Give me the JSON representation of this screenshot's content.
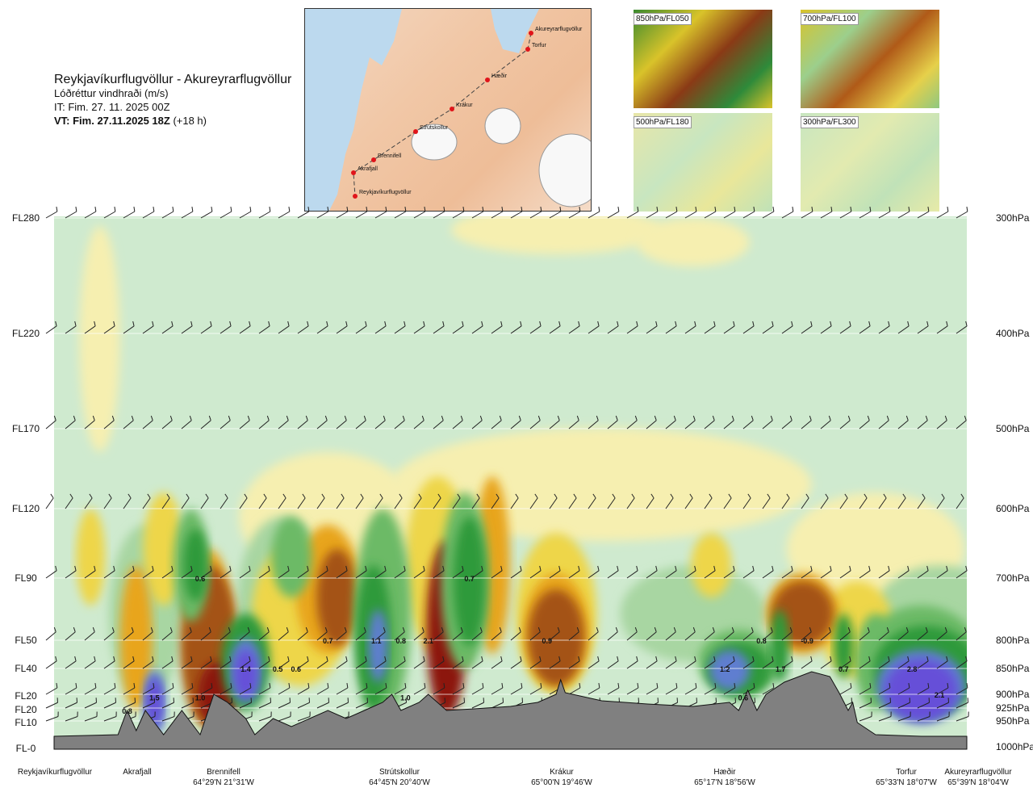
{
  "header": {
    "route": "Reykjavíkurflugvöllur - Akureyrarflugvöllur",
    "variable": "Lóðréttur vindhraði (m/s)",
    "init_time": "IT: Fim. 27. 11. 2025 00Z",
    "valid_bold": "VT: Fim. 27.11.2025 18Z",
    "valid_offset": "(+18 h)"
  },
  "map": {
    "stations": [
      {
        "name": "Akureyrarflugvöllur"
      },
      {
        "name": "Torfur"
      },
      {
        "name": "Hæðir"
      },
      {
        "name": "Krákur"
      },
      {
        "name": "Strútskollur"
      },
      {
        "name": "Brennifell"
      },
      {
        "name": "Akrafjall"
      },
      {
        "name": "Reykjavíkurflugvöllur"
      }
    ]
  },
  "thumbnails": [
    "850hPa/FL050",
    "700hPa/FL100",
    "500hPa/FL180",
    "300hPa/FL300"
  ],
  "colors": {
    "background": "#cfeacf",
    "neg1": "#f6efb0",
    "neg2": "#eed64a",
    "neg3": "#e8a51e",
    "neg4": "#a45216",
    "neg5": "#8c1410",
    "pos1": "#a8d6a2",
    "pos2": "#6cba66",
    "pos3": "#2e9a3a",
    "pos4": "#5e7ed0",
    "pos5": "#6650d8",
    "terrain": "#808080"
  },
  "chart_data": {
    "type": "heatmap",
    "title": "Lóðréttur vindhraði (m/s)",
    "xlabel": "",
    "ylabel": "",
    "left_axis_labels": [
      "FL280",
      "FL220",
      "FL170",
      "FL120",
      "FL90",
      "FL50",
      "FL40",
      "FL20",
      "FL20",
      "FL10",
      "FL-0"
    ],
    "right_axis_labels": [
      "300hPa",
      "400hPa",
      "500hPa",
      "600hPa",
      "700hPa",
      "800hPa",
      "850hPa",
      "900hPa",
      "925hPa",
      "950hPa",
      "1000hPa"
    ],
    "pressure_levels_hpa": [
      300,
      400,
      500,
      600,
      700,
      800,
      850,
      900,
      925,
      950,
      1000
    ],
    "stations": [
      {
        "name": "Reykjavíkurflugvöllur",
        "coord": ""
      },
      {
        "name": "Akrafjall",
        "coord": ""
      },
      {
        "name": "Brennifell",
        "coord": "64°29'N 21°31'W"
      },
      {
        "name": "Strútskollur",
        "coord": "64°45'N 20°40'W"
      },
      {
        "name": "Krákur",
        "coord": "65°00'N 19°46'W"
      },
      {
        "name": "Hæðir",
        "coord": "65°17'N 18°56'W"
      },
      {
        "name": "Torfur",
        "coord": "65°33'N 18°07'W"
      },
      {
        "name": "Akureyrarflugvöllur",
        "coord": "65°39'N 18°04'W"
      }
    ],
    "value_labels": [
      {
        "text": "0.6",
        "along": 0.16,
        "hpa": 700
      },
      {
        "text": "1.5",
        "along": 0.11,
        "hpa": 905
      },
      {
        "text": "0.8",
        "along": 0.08,
        "hpa": 930
      },
      {
        "text": "1.0",
        "along": 0.16,
        "hpa": 905
      },
      {
        "text": "1.4",
        "along": 0.21,
        "hpa": 850
      },
      {
        "text": "0.5",
        "along": 0.245,
        "hpa": 850
      },
      {
        "text": "0.6",
        "along": 0.265,
        "hpa": 850
      },
      {
        "text": "0.7",
        "along": 0.3,
        "hpa": 800
      },
      {
        "text": "1.1",
        "along": 0.353,
        "hpa": 800
      },
      {
        "text": "0.8",
        "along": 0.38,
        "hpa": 800
      },
      {
        "text": "2.1",
        "along": 0.41,
        "hpa": 800
      },
      {
        "text": "1.0",
        "along": 0.385,
        "hpa": 905
      },
      {
        "text": "0.7",
        "along": 0.455,
        "hpa": 700
      },
      {
        "text": "0.9",
        "along": 0.54,
        "hpa": 800
      },
      {
        "text": "1.2",
        "along": 0.735,
        "hpa": 850
      },
      {
        "text": "0.8",
        "along": 0.775,
        "hpa": 800
      },
      {
        "text": "1.7",
        "along": 0.796,
        "hpa": 850
      },
      {
        "text": "-0.9",
        "along": 0.825,
        "hpa": 800
      },
      {
        "text": "0.6",
        "along": 0.755,
        "hpa": 905
      },
      {
        "text": "0.7",
        "along": 0.865,
        "hpa": 850
      },
      {
        "text": "2.8",
        "along": 0.94,
        "hpa": 850
      },
      {
        "text": "2.1",
        "along": 0.97,
        "hpa": 900
      }
    ]
  }
}
